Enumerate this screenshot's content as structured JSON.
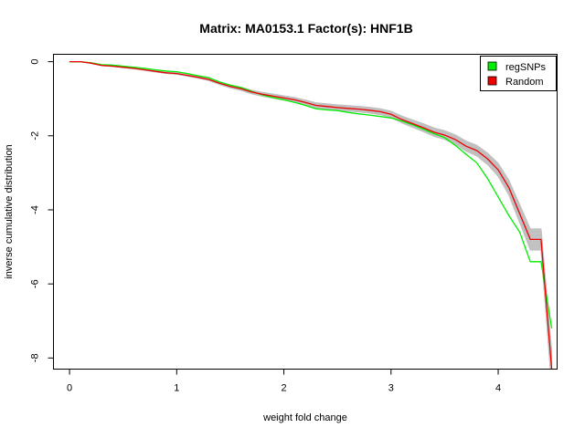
{
  "chart_data": {
    "type": "line",
    "title": "Matrix: MA0153.1 Factor(s): HNF1B",
    "xlabel": "weight fold change",
    "ylabel": "inverse cumulative distribution",
    "xlim": [
      -0.15,
      4.55
    ],
    "ylim": [
      -8.3,
      0.2
    ],
    "xticks": [
      "0",
      "1",
      "2",
      "3",
      "4"
    ],
    "yticks": [
      "0",
      "-2",
      "-4",
      "-6",
      "-8"
    ],
    "legend_position": "top-right",
    "grid": false,
    "colors": {
      "regSNPs": "#00ee00",
      "Random": "#ee0000",
      "background_random": "#c0c0c0"
    },
    "series": [
      {
        "name": "regSNPs",
        "x": [
          0,
          0.1,
          0.2,
          0.3,
          0.4,
          0.5,
          0.6,
          0.7,
          0.8,
          0.9,
          1.0,
          1.1,
          1.2,
          1.3,
          1.4,
          1.5,
          1.6,
          1.7,
          1.8,
          1.9,
          2.0,
          2.1,
          2.2,
          2.3,
          2.4,
          2.5,
          2.6,
          2.7,
          2.8,
          2.9,
          3.0,
          3.1,
          3.2,
          3.3,
          3.4,
          3.5,
          3.6,
          3.7,
          3.8,
          3.9,
          4.0,
          4.1,
          4.2,
          4.3,
          4.4,
          4.5
        ],
        "values": [
          0,
          0,
          -0.03,
          -0.08,
          -0.09,
          -0.12,
          -0.15,
          -0.18,
          -0.22,
          -0.25,
          -0.27,
          -0.32,
          -0.38,
          -0.43,
          -0.55,
          -0.63,
          -0.7,
          -0.8,
          -0.9,
          -0.97,
          -1.03,
          -1.1,
          -1.18,
          -1.27,
          -1.3,
          -1.32,
          -1.37,
          -1.41,
          -1.44,
          -1.48,
          -1.52,
          -1.6,
          -1.7,
          -1.82,
          -1.94,
          -2.05,
          -2.26,
          -2.5,
          -2.73,
          -3.15,
          -3.65,
          -4.15,
          -4.6,
          -5.4,
          -5.4,
          -7.2
        ]
      },
      {
        "name": "Random",
        "x": [
          0,
          0.1,
          0.2,
          0.3,
          0.4,
          0.5,
          0.6,
          0.7,
          0.8,
          0.9,
          1.0,
          1.1,
          1.2,
          1.3,
          1.4,
          1.5,
          1.6,
          1.7,
          1.8,
          1.9,
          2.0,
          2.1,
          2.2,
          2.3,
          2.4,
          2.5,
          2.6,
          2.7,
          2.8,
          2.9,
          3.0,
          3.1,
          3.2,
          3.3,
          3.4,
          3.5,
          3.6,
          3.7,
          3.8,
          3.9,
          4.0,
          4.1,
          4.2,
          4.3,
          4.4,
          4.5
        ],
        "values": [
          0,
          0,
          -0.04,
          -0.1,
          -0.12,
          -0.15,
          -0.18,
          -0.22,
          -0.26,
          -0.3,
          -0.32,
          -0.37,
          -0.42,
          -0.48,
          -0.58,
          -0.67,
          -0.73,
          -0.82,
          -0.88,
          -0.93,
          -0.98,
          -1.03,
          -1.1,
          -1.18,
          -1.21,
          -1.24,
          -1.26,
          -1.28,
          -1.31,
          -1.35,
          -1.42,
          -1.56,
          -1.67,
          -1.78,
          -1.9,
          -1.98,
          -2.1,
          -2.28,
          -2.4,
          -2.62,
          -2.92,
          -3.4,
          -4.1,
          -4.8,
          -4.8,
          -8.3
        ]
      }
    ],
    "legend": [
      {
        "label": "regSNPs",
        "color": "#00ee00"
      },
      {
        "label": "Random",
        "color": "#ee0000"
      }
    ]
  }
}
